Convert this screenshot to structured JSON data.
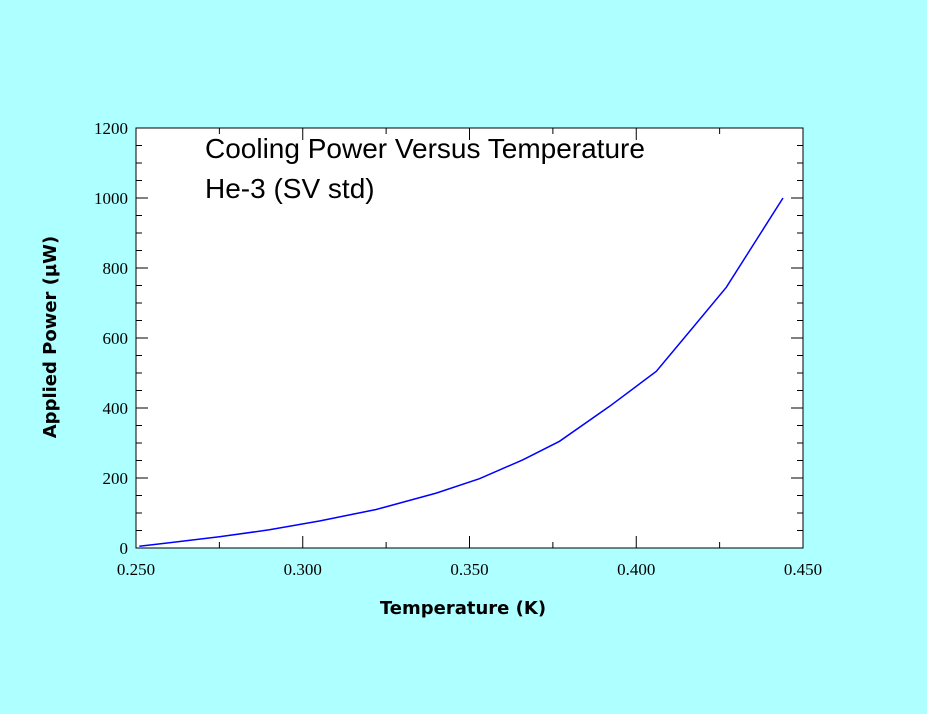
{
  "page": {
    "background": "#aeffff"
  },
  "chart_data": {
    "type": "line",
    "title": "Cooling Power Versus Temperature",
    "subtitle": "He-3 (SV std)",
    "xlabel": "Temperature (K)",
    "ylabel": "Applied Power (µW)",
    "xlim": [
      0.25,
      0.45
    ],
    "ylim": [
      0,
      1200
    ],
    "x_ticks": [
      0.25,
      0.3,
      0.35,
      0.4,
      0.45
    ],
    "x_tick_labels": [
      "0.250",
      "0.300",
      "0.350",
      "0.400",
      "0.450"
    ],
    "y_ticks": [
      0,
      200,
      400,
      600,
      800,
      1000,
      1200
    ],
    "y_tick_labels": [
      "0",
      "200",
      "400",
      "600",
      "800",
      "1000",
      "1200"
    ],
    "grid": false,
    "plot_background": "#ffffff",
    "series": [
      {
        "color": "#0000ff",
        "x": [
          0.251,
          0.26,
          0.275,
          0.29,
          0.305,
          0.322,
          0.34,
          0.353,
          0.366,
          0.377,
          0.392,
          0.406,
          0.417,
          0.427,
          0.444
        ],
        "y": [
          5,
          15,
          32,
          52,
          77,
          110,
          157,
          198,
          252,
          305,
          405,
          505,
          630,
          745,
          1000
        ]
      }
    ]
  }
}
